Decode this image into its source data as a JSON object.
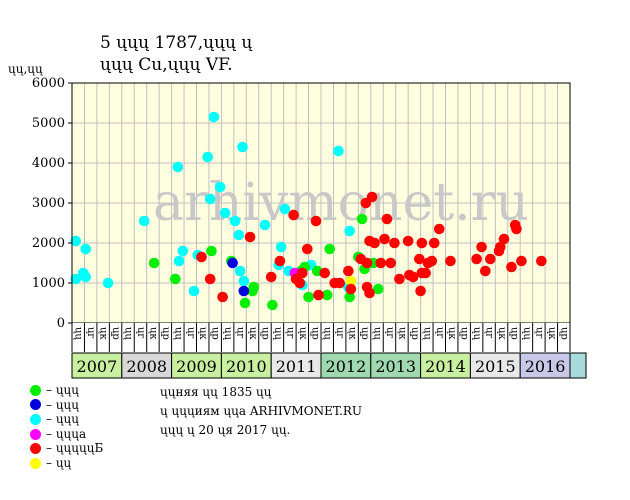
{
  "title_line1": "5 ųųų 1787,ųųų ų",
  "title_line2": "ųųų Cu,ųųų VF.",
  "ylabel": "ųų,ųų",
  "watermark": "arhivmonet.ru",
  "notes": [
    "ųųняя ųų 1835 ųų",
    "ų ųųųиям ųųa ARHIVMONET.RU",
    "ųųų ų 20 ųя 2017 ųų."
  ],
  "colors": {
    "green": "#00ee00",
    "blue": "#0000dd",
    "cyan": "#00ffff",
    "magenta": "#ff00ff",
    "red": "#ff0000",
    "yellow": "#ffff00",
    "plot_bg": "#ffffe0",
    "grid": "#c0c0c0"
  },
  "legend": [
    {
      "label": "– ųųų",
      "color": "#00ee00"
    },
    {
      "label": "– ųųų",
      "color": "#0000dd"
    },
    {
      "label": "– ųųų",
      "color": "#00ffff"
    },
    {
      "label": "– ųųųa",
      "color": "#ff00ff"
    },
    {
      "label": "– ųųųųųБ",
      "color": "#ff0000"
    },
    {
      "label": "– ųų",
      "color": "#ffff00"
    }
  ],
  "chart_data": {
    "type": "scatter",
    "ylim": [
      0,
      6000
    ],
    "yticks": [
      0,
      1000,
      2000,
      3000,
      4000,
      5000,
      6000
    ],
    "x_unit": "quarter index (0 = first quarter of 2007)",
    "xlim": [
      0,
      40
    ],
    "quarter_labels": [
      "ųų",
      "ųг",
      "ųк",
      "ųр",
      "ųų",
      "ųг",
      "ųк",
      "ųр",
      "ųų",
      "ųг",
      "ųк",
      "ųр",
      "ųų",
      "ųг",
      "ųк",
      "ųр",
      "ųų",
      "ųг",
      "ųк",
      "ųр",
      "ųų",
      "ųг",
      "ųк",
      "ųр",
      "ųų",
      "ųг",
      "ųк",
      "ųр",
      "ųų",
      "ųг",
      "ųк",
      "ųр",
      "ųų",
      "ųг",
      "ųк",
      "ųр",
      "ųų",
      "ųг",
      "ųк",
      "ųр"
    ],
    "years": [
      {
        "label": "2007",
        "bg": "#c8f0a0"
      },
      {
        "label": "2008",
        "bg": "#d8d8d8"
      },
      {
        "label": "2009",
        "bg": "#c8f0a0"
      },
      {
        "label": "2010",
        "bg": "#c8f0a0"
      },
      {
        "label": "2011",
        "bg": "#e8e8e8"
      },
      {
        "label": "2012",
        "bg": "#a0d8b0"
      },
      {
        "label": "2013",
        "bg": "#a0d8b0"
      },
      {
        "label": "2014",
        "bg": "#c8f0a0"
      },
      {
        "label": "2015",
        "bg": "#e8e8e8"
      },
      {
        "label": "2016",
        "bg": "#c8c8e8"
      }
    ],
    "points": {
      "green": [
        [
          6.6,
          1500
        ],
        [
          8.3,
          1100
        ],
        [
          11.2,
          1800
        ],
        [
          12.8,
          1550
        ],
        [
          13.9,
          500
        ],
        [
          14.5,
          800
        ],
        [
          14.6,
          900
        ],
        [
          16.1,
          450
        ],
        [
          18.4,
          1300
        ],
        [
          18.7,
          1400
        ],
        [
          19.0,
          650
        ],
        [
          19.7,
          1300
        ],
        [
          20.5,
          700
        ],
        [
          20.7,
          1850
        ],
        [
          22.3,
          650
        ],
        [
          23.0,
          1650
        ],
        [
          23.3,
          2600
        ],
        [
          23.5,
          1350
        ],
        [
          24.2,
          1500
        ],
        [
          24.6,
          850
        ]
      ],
      "blue": [
        [
          12.9,
          1500
        ],
        [
          13.8,
          800
        ]
      ],
      "cyan": [
        [
          0.3,
          2050
        ],
        [
          0.3,
          1100
        ],
        [
          0.9,
          1250
        ],
        [
          1.1,
          1850
        ],
        [
          1.1,
          1150
        ],
        [
          2.9,
          1000
        ],
        [
          5.8,
          2550
        ],
        [
          8.5,
          3900
        ],
        [
          8.6,
          1550
        ],
        [
          8.9,
          1800
        ],
        [
          9.8,
          800
        ],
        [
          10.1,
          1700
        ],
        [
          10.9,
          4150
        ],
        [
          11.1,
          3100
        ],
        [
          11.4,
          5150
        ],
        [
          11.9,
          3400
        ],
        [
          12.3,
          2750
        ],
        [
          13.1,
          2550
        ],
        [
          13.4,
          2200
        ],
        [
          13.5,
          1300
        ],
        [
          13.7,
          4400
        ],
        [
          13.8,
          1050
        ],
        [
          15.5,
          2450
        ],
        [
          16.6,
          1450
        ],
        [
          16.8,
          1900
        ],
        [
          17.1,
          2850
        ],
        [
          17.4,
          1300
        ],
        [
          18.5,
          950
        ],
        [
          19.2,
          1450
        ],
        [
          21.4,
          4300
        ],
        [
          22.2,
          900
        ],
        [
          22.3,
          2300
        ]
      ],
      "magenta": [
        [
          17.9,
          1250
        ]
      ],
      "red": [
        [
          10.4,
          1650
        ],
        [
          11.1,
          1100
        ],
        [
          12.1,
          650
        ],
        [
          14.3,
          2150
        ],
        [
          16.0,
          1150
        ],
        [
          16.7,
          1550
        ],
        [
          17.8,
          2700
        ],
        [
          18.0,
          1100
        ],
        [
          18.3,
          1000
        ],
        [
          18.5,
          1250
        ],
        [
          18.9,
          1850
        ],
        [
          19.6,
          2550
        ],
        [
          19.8,
          700
        ],
        [
          20.3,
          1250
        ],
        [
          21.1,
          1000
        ],
        [
          21.5,
          1000
        ],
        [
          22.2,
          1300
        ],
        [
          22.4,
          850
        ],
        [
          23.2,
          1600
        ],
        [
          23.6,
          3000
        ],
        [
          23.7,
          900
        ],
        [
          23.7,
          1500
        ],
        [
          23.9,
          2050
        ],
        [
          23.9,
          750
        ],
        [
          24.1,
          3150
        ],
        [
          24.3,
          2000
        ],
        [
          24.8,
          1500
        ],
        [
          25.1,
          2100
        ],
        [
          25.3,
          2600
        ],
        [
          25.6,
          1500
        ],
        [
          25.9,
          2000
        ],
        [
          26.3,
          1100
        ],
        [
          27.0,
          2050
        ],
        [
          27.1,
          1200
        ],
        [
          27.4,
          1150
        ],
        [
          27.9,
          1600
        ],
        [
          28.0,
          800
        ],
        [
          28.1,
          2000
        ],
        [
          28.1,
          1250
        ],
        [
          28.4,
          1250
        ],
        [
          28.6,
          1500
        ],
        [
          28.9,
          1550
        ],
        [
          29.1,
          2000
        ],
        [
          29.5,
          2350
        ],
        [
          30.4,
          1550
        ],
        [
          32.5,
          1600
        ],
        [
          32.9,
          1900
        ],
        [
          33.2,
          1300
        ],
        [
          33.6,
          1600
        ],
        [
          34.3,
          1800
        ],
        [
          34.4,
          1900
        ],
        [
          34.7,
          2100
        ],
        [
          35.3,
          1400
        ],
        [
          35.6,
          2450
        ],
        [
          35.7,
          2350
        ],
        [
          36.1,
          1550
        ],
        [
          37.7,
          1550
        ]
      ],
      "yellow": [
        [
          22.4,
          1050
        ]
      ]
    }
  }
}
